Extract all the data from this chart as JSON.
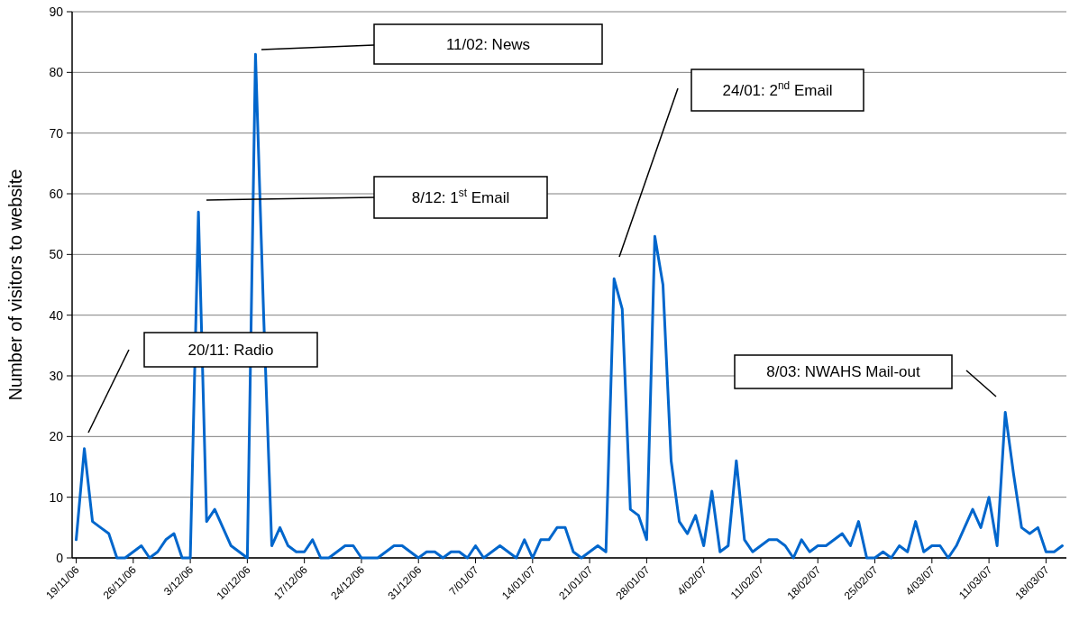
{
  "chart_data": {
    "type": "line",
    "ylabel": "Number of visitors to website",
    "categories": [
      "19/11/06",
      null,
      null,
      null,
      null,
      null,
      null,
      "26/11/06",
      null,
      null,
      null,
      null,
      null,
      null,
      "3/12/06",
      null,
      null,
      null,
      null,
      null,
      null,
      "10/12/06",
      null,
      null,
      null,
      null,
      null,
      null,
      "17/12/06",
      null,
      null,
      null,
      null,
      null,
      null,
      "24/12/06",
      null,
      null,
      null,
      null,
      null,
      null,
      "31/12/06",
      null,
      null,
      null,
      null,
      null,
      null,
      "7/01/07",
      null,
      null,
      null,
      null,
      null,
      null,
      "14/01/07",
      null,
      null,
      null,
      null,
      null,
      null,
      "21/01/07",
      null,
      null,
      null,
      null,
      null,
      null,
      "28/01/07",
      null,
      null,
      null,
      null,
      null,
      null,
      "4/02/07",
      null,
      null,
      null,
      null,
      null,
      null,
      "11/02/07",
      null,
      null,
      null,
      null,
      null,
      null,
      "18/02/07",
      null,
      null,
      null,
      null,
      null,
      null,
      "25/02/07",
      null,
      null,
      null,
      null,
      null,
      null,
      "4/03/07",
      null,
      null,
      null,
      null,
      null,
      null,
      "11/03/07",
      null,
      null,
      null,
      null,
      null,
      null,
      "18/03/07",
      null,
      null
    ],
    "series": [
      {
        "color": "#0066cc",
        "values": [
          3,
          18,
          6,
          5,
          4,
          0,
          0,
          1,
          2,
          0,
          1,
          3,
          4,
          0,
          0,
          57,
          6,
          8,
          5,
          2,
          1,
          0,
          83,
          40,
          2,
          5,
          2,
          1,
          1,
          3,
          0,
          0,
          1,
          2,
          2,
          0,
          0,
          0,
          1,
          2,
          2,
          1,
          0,
          1,
          1,
          0,
          1,
          1,
          0,
          2,
          0,
          1,
          2,
          1,
          0,
          3,
          0,
          3,
          3,
          5,
          5,
          1,
          0,
          1,
          2,
          1,
          46,
          41,
          8,
          7,
          3,
          53,
          45,
          16,
          6,
          4,
          7,
          2,
          11,
          1,
          2,
          16,
          3,
          1,
          2,
          3,
          3,
          2,
          0,
          3,
          1,
          2,
          2,
          3,
          4,
          2,
          6,
          0,
          0,
          1,
          0,
          2,
          1,
          6,
          1,
          2,
          2,
          0,
          2,
          5,
          8,
          5,
          10,
          2,
          24,
          14,
          5,
          4,
          5,
          1,
          1,
          2
        ]
      }
    ],
    "ylim": [
      0,
      90
    ],
    "yticks": [
      0,
      10,
      20,
      30,
      40,
      50,
      60,
      70,
      80,
      90
    ],
    "grid": "y",
    "marker": "none",
    "line_style": "solid",
    "annotations": [
      "20/11: Radio",
      "8/12: 1$^{st}$ Email",
      "11/02: News",
      "24/01: 2$^{nd}$ Email",
      "8/03: NWAHS Mail-out"
    ]
  }
}
